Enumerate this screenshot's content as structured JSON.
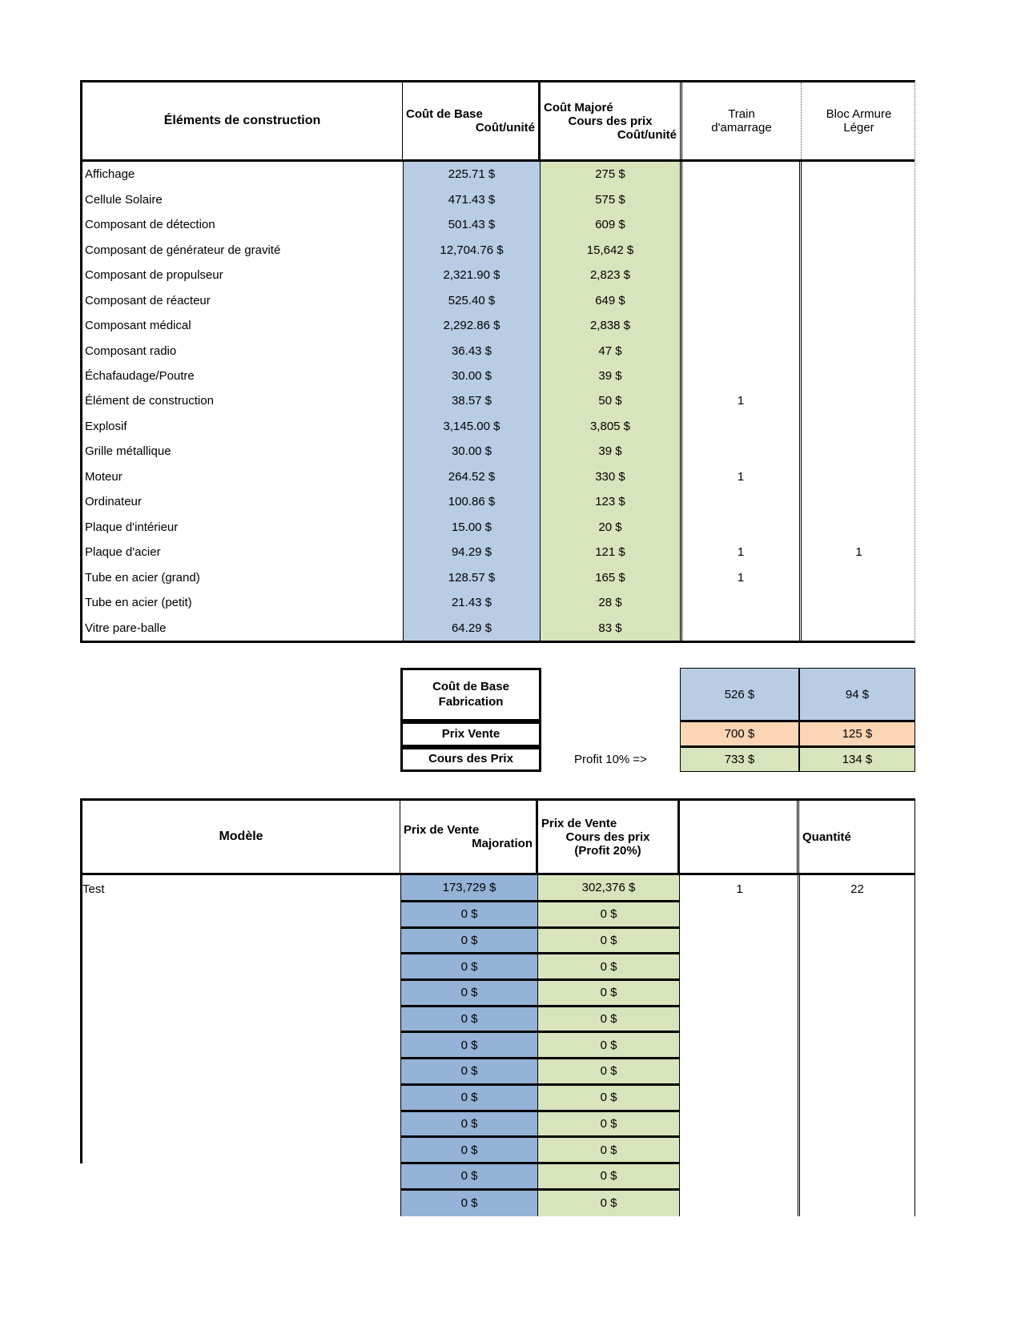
{
  "colors": {
    "topBlue": "#B8CCE4",
    "topGreen": "#D7E4BC",
    "botBlue": "#95B3D7",
    "botGreen": "#D7E4BC",
    "orange": "#FCD5B4",
    "border": "#000000"
  },
  "top_table": {
    "header": {
      "elements": "Éléments de construction",
      "base_l1": "Coût de Base",
      "base_l2": "Coût/unité",
      "majore_l1": "Coût Majoré",
      "majore_l2": "Cours des prix",
      "majore_l3": "Coût/unité",
      "train_l1": "Train",
      "train_l2": "d'amarrage",
      "bloc_l1": "Bloc Armure",
      "bloc_l2": "Léger"
    },
    "rows": [
      {
        "name": "Affichage",
        "base": "225.71 $",
        "majore": "275 $",
        "train": "",
        "bloc": ""
      },
      {
        "name": "Cellule Solaire",
        "base": "471.43 $",
        "majore": "575 $",
        "train": "",
        "bloc": ""
      },
      {
        "name": "Composant de détection",
        "base": "501.43 $",
        "majore": "609 $",
        "train": "",
        "bloc": ""
      },
      {
        "name": "Composant de générateur de gravité",
        "base": "12,704.76 $",
        "majore": "15,642 $",
        "train": "",
        "bloc": ""
      },
      {
        "name": "Composant de propulseur",
        "base": "2,321.90 $",
        "majore": "2,823 $",
        "train": "",
        "bloc": ""
      },
      {
        "name": "Composant de réacteur",
        "base": "525.40 $",
        "majore": "649 $",
        "train": "",
        "bloc": ""
      },
      {
        "name": "Composant médical",
        "base": "2,292.86 $",
        "majore": "2,838 $",
        "train": "",
        "bloc": ""
      },
      {
        "name": "Composant radio",
        "base": "36.43 $",
        "majore": "47 $",
        "train": "",
        "bloc": ""
      },
      {
        "name": "Échafaudage/Poutre",
        "base": "30.00 $",
        "majore": "39 $",
        "train": "",
        "bloc": ""
      },
      {
        "name": "Élément de construction",
        "base": "38.57 $",
        "majore": "50 $",
        "train": "1",
        "bloc": ""
      },
      {
        "name": "Explosif",
        "base": "3,145.00 $",
        "majore": "3,805 $",
        "train": "",
        "bloc": ""
      },
      {
        "name": "Grille métallique",
        "base": "30.00 $",
        "majore": "39 $",
        "train": "",
        "bloc": ""
      },
      {
        "name": "Moteur",
        "base": "264.52 $",
        "majore": "330 $",
        "train": "1",
        "bloc": ""
      },
      {
        "name": "Ordinateur",
        "base": "100.86 $",
        "majore": "123 $",
        "train": "",
        "bloc": ""
      },
      {
        "name": "Plaque d'intérieur",
        "base": "15.00 $",
        "majore": "20 $",
        "train": "",
        "bloc": ""
      },
      {
        "name": "Plaque d'acier",
        "base": "94.29 $",
        "majore": "121 $",
        "train": "1",
        "bloc": "1"
      },
      {
        "name": "Tube en acier (grand)",
        "base": "128.57 $",
        "majore": "165 $",
        "train": "1",
        "bloc": ""
      },
      {
        "name": "Tube en acier (petit)",
        "base": "21.43 $",
        "majore": "28 $",
        "train": "",
        "bloc": ""
      },
      {
        "name": "Vitre pare-balle",
        "base": "64.29 $",
        "majore": "83 $",
        "train": "",
        "bloc": ""
      }
    ]
  },
  "summary": {
    "base_label_l1": "Coût de Base",
    "base_label_l2": "Fabrication",
    "vente_label": "Prix Vente",
    "cours_label": "Cours des Prix",
    "profit_label": "Profit 10% =>",
    "base_train": "526 $",
    "base_bloc": "94 $",
    "vente_train": "700 $",
    "vente_bloc": "125 $",
    "cours_train": "733 $",
    "cours_bloc": "134 $"
  },
  "bottom_table": {
    "header": {
      "modele": "Modèle",
      "vente_l1": "Prix de Vente",
      "vente_l2": "Majoration",
      "cours_l1": "Prix de Vente",
      "cours_l2": "Cours des prix",
      "cours_l3": "(Profit 20%)",
      "quantite": "Quantité"
    },
    "rows": [
      {
        "model": "Test",
        "majoration": "173,729 $",
        "cours": "302,376 $",
        "train": "1",
        "quantite": "22"
      },
      {
        "model": "",
        "majoration": "0 $",
        "cours": "0 $",
        "train": "",
        "quantite": ""
      },
      {
        "model": "",
        "majoration": "0 $",
        "cours": "0 $",
        "train": "",
        "quantite": ""
      },
      {
        "model": "",
        "majoration": "0 $",
        "cours": "0 $",
        "train": "",
        "quantite": ""
      },
      {
        "model": "",
        "majoration": "0 $",
        "cours": "0 $",
        "train": "",
        "quantite": ""
      },
      {
        "model": "",
        "majoration": "0 $",
        "cours": "0 $",
        "train": "",
        "quantite": ""
      },
      {
        "model": "",
        "majoration": "0 $",
        "cours": "0 $",
        "train": "",
        "quantite": ""
      },
      {
        "model": "",
        "majoration": "0 $",
        "cours": "0 $",
        "train": "",
        "quantite": ""
      },
      {
        "model": "",
        "majoration": "0 $",
        "cours": "0 $",
        "train": "",
        "quantite": ""
      },
      {
        "model": "",
        "majoration": "0 $",
        "cours": "0 $",
        "train": "",
        "quantite": ""
      },
      {
        "model": "",
        "majoration": "0 $",
        "cours": "0 $",
        "train": "",
        "quantite": ""
      },
      {
        "model": "",
        "majoration": "0 $",
        "cours": "0 $",
        "train": "",
        "quantite": ""
      },
      {
        "model": "",
        "majoration": "0 $",
        "cours": "0 $",
        "train": "",
        "quantite": ""
      }
    ]
  }
}
